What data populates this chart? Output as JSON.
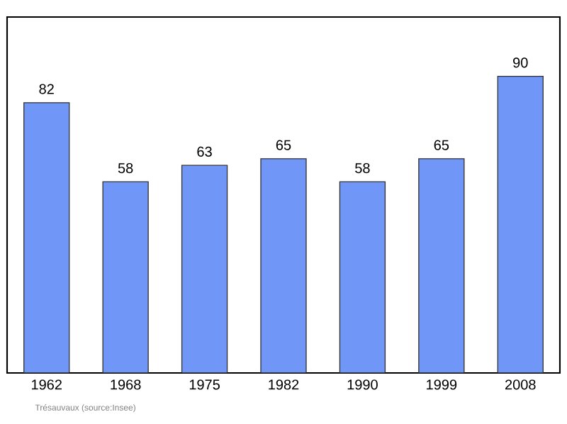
{
  "chart_data": {
    "type": "bar",
    "categories": [
      "1962",
      "1968",
      "1975",
      "1982",
      "1990",
      "1999",
      "2008"
    ],
    "values": [
      82,
      58,
      63,
      65,
      58,
      65,
      90
    ],
    "color": "#7096f8",
    "data_labels": true,
    "annotations": [
      "Trésauvaux   (source:Insee)"
    ]
  }
}
